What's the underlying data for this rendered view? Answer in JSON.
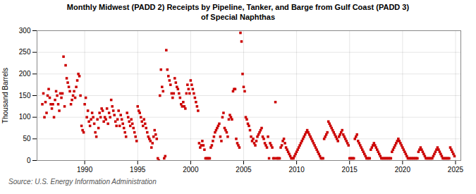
{
  "chart_data": {
    "type": "scatter",
    "title": "Monthly Midwest (PADD 2) Receipts by Pipeline, Tanker, and Barge from Gulf Coast (PADD 3)\nof Special Naphthas",
    "ylabel": "Thousand Barrels",
    "source": "Source: U.S. Energy Information Administration",
    "color": "#cc0000",
    "marker": "square",
    "grid": true,
    "xlim": [
      1985.5,
      2025.5
    ],
    "ylim": [
      0,
      300
    ],
    "xticks": [
      1990,
      1995,
      2000,
      2005,
      2010,
      2015,
      2020,
      2025
    ],
    "yticks": [
      0,
      50,
      100,
      150,
      200,
      250,
      300
    ],
    "x": [
      1986.0,
      1986.1,
      1986.2,
      1986.3,
      1986.4,
      1986.5,
      1986.6,
      1986.7,
      1986.8,
      1986.9,
      1987.0,
      1987.1,
      1987.2,
      1987.3,
      1987.4,
      1987.5,
      1987.6,
      1987.7,
      1987.8,
      1987.9,
      1988.0,
      1988.1,
      1988.2,
      1988.3,
      1988.4,
      1988.5,
      1988.6,
      1988.7,
      1988.8,
      1988.9,
      1989.0,
      1989.1,
      1989.2,
      1989.3,
      1989.4,
      1989.5,
      1989.6,
      1989.7,
      1989.8,
      1989.9,
      1990.0,
      1990.1,
      1990.2,
      1990.3,
      1990.4,
      1990.5,
      1990.6,
      1990.7,
      1990.8,
      1990.9,
      1991.0,
      1991.1,
      1991.2,
      1991.3,
      1991.4,
      1991.5,
      1991.6,
      1991.7,
      1991.8,
      1991.9,
      1992.0,
      1992.1,
      1992.2,
      1992.3,
      1992.4,
      1992.5,
      1992.6,
      1992.7,
      1992.8,
      1992.9,
      1993.0,
      1993.1,
      1993.2,
      1993.3,
      1993.4,
      1993.5,
      1993.6,
      1993.7,
      1993.8,
      1993.9,
      1994.0,
      1994.1,
      1994.2,
      1994.3,
      1994.4,
      1994.5,
      1994.6,
      1994.7,
      1994.8,
      1994.9,
      1995.0,
      1995.1,
      1995.2,
      1995.3,
      1995.4,
      1995.5,
      1995.6,
      1995.7,
      1995.8,
      1995.9,
      1996.0,
      1996.1,
      1996.2,
      1996.3,
      1996.4,
      1996.5,
      1996.6,
      1996.7,
      1996.8,
      1996.9,
      1997.0,
      1997.1,
      1997.2,
      1997.3,
      1997.4,
      1997.5,
      1997.6,
      1997.7,
      1997.8,
      1997.9,
      1998.0,
      1998.1,
      1998.2,
      1998.3,
      1998.4,
      1998.5,
      1998.6,
      1998.7,
      1998.8,
      1998.9,
      1999.0,
      1999.1,
      1999.2,
      1999.3,
      1999.4,
      1999.5,
      1999.6,
      1999.7,
      1999.8,
      1999.9,
      2000.0,
      2000.1,
      2000.2,
      2000.3,
      2000.4,
      2000.5,
      2000.6,
      2000.7,
      2000.8,
      2000.9,
      2001.0,
      2001.1,
      2001.2,
      2001.3,
      2001.4,
      2001.5,
      2001.6,
      2001.7,
      2001.8,
      2001.9,
      2002.0,
      2002.1,
      2002.2,
      2002.3,
      2002.4,
      2002.5,
      2002.6,
      2002.7,
      2002.8,
      2002.9,
      2003.0,
      2003.1,
      2003.2,
      2003.3,
      2003.4,
      2003.5,
      2003.6,
      2003.7,
      2003.8,
      2003.9,
      2004.0,
      2004.1,
      2004.2,
      2004.3,
      2004.4,
      2004.5,
      2004.6,
      2004.7,
      2004.8,
      2004.9,
      2005.0,
      2005.1,
      2005.2,
      2005.3,
      2005.4,
      2005.5,
      2005.6,
      2005.7,
      2005.8,
      2005.9,
      2006.0,
      2006.1,
      2006.2,
      2006.3,
      2006.4,
      2006.5,
      2006.6,
      2006.7,
      2006.8,
      2006.9,
      2007.0,
      2007.1,
      2007.2,
      2007.3,
      2007.4,
      2007.5,
      2007.6,
      2007.7,
      2007.8,
      2007.9,
      2008.0,
      2008.1,
      2008.2,
      2008.3,
      2008.4,
      2008.5,
      2008.6,
      2008.7,
      2008.8,
      2008.9,
      2009.0,
      2009.1,
      2009.2,
      2009.3,
      2009.4,
      2009.5,
      2009.6,
      2009.7,
      2009.8,
      2009.9,
      2010.0,
      2010.1,
      2010.2,
      2010.3,
      2010.4,
      2010.5,
      2010.6,
      2010.7,
      2010.8,
      2010.9,
      2011.0,
      2011.1,
      2011.2,
      2011.3,
      2011.4,
      2011.5,
      2011.6,
      2011.7,
      2011.8,
      2011.9,
      2012.0,
      2012.1,
      2012.2,
      2012.3,
      2012.4,
      2012.5,
      2012.6,
      2012.7,
      2012.8,
      2012.9,
      2013.0,
      2013.1,
      2013.2,
      2013.3,
      2013.4,
      2013.5,
      2013.6,
      2013.7,
      2013.8,
      2013.9,
      2014.0,
      2014.1,
      2014.2,
      2014.3,
      2014.4,
      2014.5,
      2014.6,
      2014.7,
      2014.8,
      2014.9,
      2015.0,
      2015.1,
      2015.2,
      2015.3,
      2015.4,
      2015.5,
      2015.6,
      2015.7,
      2015.8,
      2015.9,
      2016.0,
      2016.1,
      2016.2,
      2016.3,
      2016.4,
      2016.5,
      2016.6,
      2016.7,
      2016.8,
      2016.9,
      2017.0,
      2017.1,
      2017.2,
      2017.3,
      2017.4,
      2017.5,
      2017.6,
      2017.7,
      2017.8,
      2017.9,
      2018.0,
      2018.1,
      2018.2,
      2018.3,
      2018.4,
      2018.5,
      2018.6,
      2018.7,
      2018.8,
      2018.9,
      2019.0,
      2019.1,
      2019.2,
      2019.3,
      2019.4,
      2019.5,
      2019.6,
      2019.7,
      2019.8,
      2019.9,
      2020.0,
      2020.1,
      2020.2,
      2020.3,
      2020.4,
      2020.5,
      2020.6,
      2020.7,
      2020.8,
      2020.9,
      2021.0,
      2021.1,
      2021.2,
      2021.3,
      2021.4,
      2021.5,
      2021.6,
      2021.7,
      2021.8,
      2021.9,
      2022.0,
      2022.1,
      2022.2,
      2022.3,
      2022.4,
      2022.5,
      2022.6,
      2022.7,
      2022.8,
      2022.9,
      2023.0,
      2023.1,
      2023.2,
      2023.3,
      2023.4,
      2023.5,
      2023.6,
      2023.7,
      2023.8,
      2023.9,
      2024.0,
      2024.1,
      2024.2,
      2024.3,
      2024.4,
      2024.5,
      2024.6,
      2024.7,
      2024.8,
      2024.9
    ],
    "values": [
      130,
      155,
      100,
      135,
      110,
      150,
      165,
      145,
      130,
      120,
      130,
      100,
      140,
      160,
      150,
      130,
      115,
      155,
      145,
      155,
      240,
      125,
      220,
      190,
      180,
      170,
      160,
      130,
      140,
      150,
      160,
      145,
      170,
      185,
      200,
      195,
      150,
      80,
      70,
      65,
      130,
      145,
      100,
      115,
      90,
      80,
      95,
      110,
      100,
      85,
      65,
      55,
      95,
      75,
      110,
      100,
      120,
      115,
      90,
      100,
      95,
      120,
      85,
      110,
      100,
      140,
      125,
      115,
      105,
      90,
      80,
      95,
      115,
      80,
      105,
      95,
      85,
      75,
      65,
      55,
      110,
      100,
      90,
      80,
      95,
      85,
      75,
      65,
      55,
      45,
      125,
      115,
      110,
      100,
      90,
      80,
      95,
      85,
      75,
      65,
      55,
      50,
      45,
      30,
      40,
      55,
      70,
      60,
      50,
      5,
      0,
      150,
      210,
      170,
      160,
      5,
      10,
      255,
      210,
      195,
      185,
      175,
      155,
      145,
      155,
      190,
      180,
      170,
      165,
      155,
      145,
      130,
      125,
      135,
      125,
      120,
      155,
      175,
      165,
      155,
      185,
      175,
      165,
      155,
      145,
      135,
      125,
      115,
      40,
      30,
      35,
      45,
      35,
      25,
      5,
      5,
      5,
      5,
      5,
      30,
      35,
      45,
      55,
      65,
      70,
      75,
      80,
      85,
      55,
      45,
      100,
      110,
      75,
      70,
      65,
      55,
      95,
      105,
      100,
      95,
      160,
      165,
      165,
      50,
      40,
      35,
      30,
      295,
      275,
      200,
      170,
      160,
      100,
      95,
      85,
      80,
      70,
      55,
      45,
      50,
      40,
      35,
      45,
      55,
      60,
      65,
      70,
      75,
      55,
      50,
      40,
      35,
      30,
      55,
      5,
      40,
      35,
      30,
      5,
      5,
      135,
      5,
      5,
      5,
      5,
      30,
      35,
      45,
      50,
      40,
      30,
      25,
      20,
      15,
      10,
      5,
      5,
      5,
      10,
      15,
      20,
      25,
      30,
      35,
      40,
      45,
      50,
      55,
      60,
      65,
      70,
      65,
      60,
      55,
      50,
      45,
      40,
      35,
      30,
      25,
      20,
      15,
      10,
      5,
      5,
      5,
      50,
      55,
      60,
      65,
      90,
      85,
      80,
      75,
      70,
      65,
      60,
      55,
      50,
      45,
      55,
      60,
      65,
      70,
      60,
      55,
      50,
      45,
      40,
      35,
      5,
      5,
      5,
      5,
      5,
      50,
      55,
      60,
      45,
      40,
      35,
      30,
      25,
      20,
      15,
      10,
      5,
      5,
      5,
      5,
      25,
      30,
      35,
      40,
      35,
      30,
      25,
      20,
      15,
      10,
      5,
      5,
      5,
      5,
      5,
      5,
      5,
      5,
      5,
      5,
      20,
      25,
      30,
      35,
      40,
      45,
      50,
      45,
      40,
      35,
      30,
      25,
      20,
      15,
      10,
      5,
      5,
      5,
      5,
      5,
      5,
      5,
      5,
      5,
      5,
      20,
      25,
      30,
      25,
      20,
      15,
      10,
      5,
      5,
      5,
      5,
      5,
      5,
      5,
      10,
      15,
      20,
      25,
      30,
      25,
      20,
      15,
      10,
      5,
      5,
      5,
      5,
      5,
      5,
      5,
      30,
      25,
      20,
      15,
      10
    ]
  }
}
